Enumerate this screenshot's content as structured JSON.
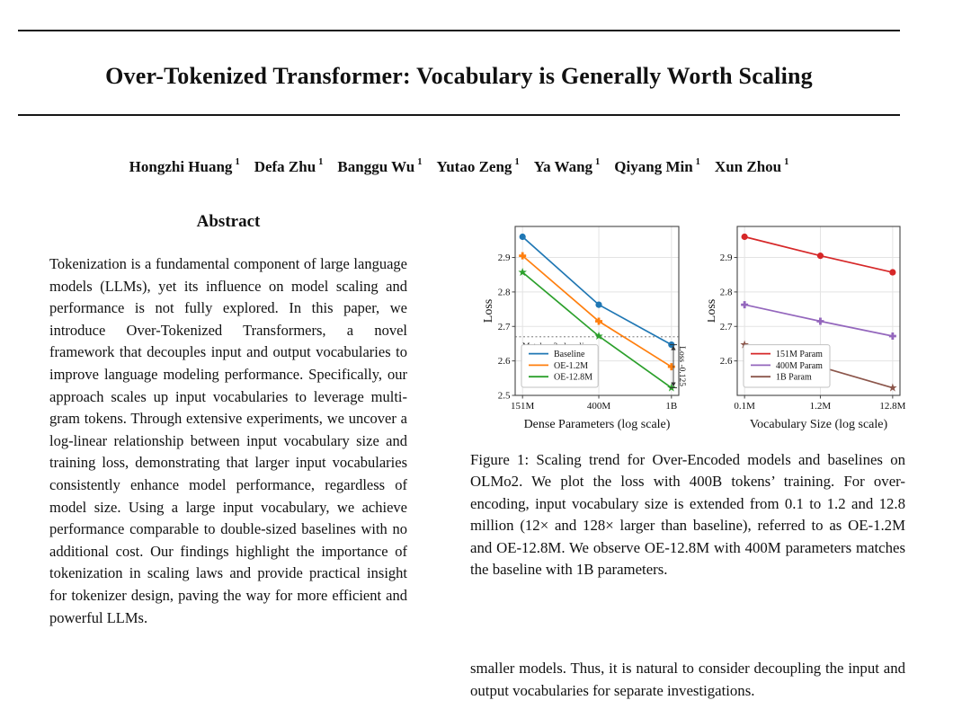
{
  "header": {
    "title": "Over-Tokenized Transformer: Vocabulary is Generally Worth Scaling",
    "authors": [
      {
        "name": "Hongzhi Huang",
        "affiliation": "1"
      },
      {
        "name": "Defa Zhu",
        "affiliation": "1"
      },
      {
        "name": "Banggu Wu",
        "affiliation": "1"
      },
      {
        "name": "Yutao Zeng",
        "affiliation": "1"
      },
      {
        "name": "Ya Wang",
        "affiliation": "1"
      },
      {
        "name": "Qiyang Min",
        "affiliation": "1"
      },
      {
        "name": "Xun Zhou",
        "affiliation": "1"
      }
    ]
  },
  "abstract": {
    "heading": "Abstract",
    "text": "Tokenization is a fundamental component of large language models (LLMs), yet its influence on model scaling and performance is not fully explored. In this paper, we introduce Over-Tokenized Transformers, a novel framework that decouples input and output vocabularies to improve language modeling performance. Specifically, our approach scales up input vocabularies to leverage multi-gram tokens. Through extensive experiments, we uncover a log-linear relationship between input vocabulary size and training loss, demonstrating that larger input vocabularies consistently enhance model performance, regardless of model size. Using a large input vocabulary, we achieve performance comparable to double-sized baselines with no additional cost. Our findings highlight the importance of tokenization in scaling laws and provide practical insight for tokenizer design, paving the way for more efficient and powerful LLMs."
  },
  "figure": {
    "caption": "Figure 1: Scaling trend for Over-Encoded models and baselines on OLMo2. We plot the loss with 400B tokens’ training. For over-encoding, input vocabulary size is extended from 0.1 to 1.2 and 12.8 million (12× and 128× larger than baseline), referred to as OE-1.2M and OE-12.8M. We observe OE-12.8M with 400M parameters matches the baseline with 1B parameters."
  },
  "body": {
    "text": "smaller models. Thus, it is natural to consider decoupling the input and output vocabularies for separate investigations."
  },
  "chart_data": [
    {
      "type": "line",
      "title": "",
      "xlabel": "Dense Parameters (log scale)",
      "ylabel": "Loss",
      "x_ticks": [
        "151M",
        "400M",
        "1B"
      ],
      "x_log10": [
        8.18,
        8.6,
        9.0
      ],
      "ylim": [
        2.5,
        2.99
      ],
      "y_ticks": [
        2.5,
        2.6,
        2.7,
        2.8,
        2.9
      ],
      "grid": true,
      "legend_position": "lower left",
      "series": [
        {
          "name": "Baseline",
          "color": "#1f77b4",
          "marker": "circle",
          "values": [
            2.96,
            2.763,
            2.647
          ]
        },
        {
          "name": "OE-1.2M",
          "color": "#ff7f0e",
          "marker": "plus",
          "values": [
            2.905,
            2.715,
            2.583
          ]
        },
        {
          "name": "OE-12.8M",
          "color": "#2ca02c",
          "marker": "star",
          "values": [
            2.857,
            2.672,
            2.522
          ]
        }
      ],
      "annotations": {
        "hline": {
          "y": 2.67,
          "label": "Matches 2x baseline"
        },
        "arrow": {
          "from": 2.647,
          "to": 2.522,
          "label": "Loss -0.125"
        }
      }
    },
    {
      "type": "line",
      "title": "",
      "xlabel": "Vocabulary Size (log scale)",
      "ylabel": "Loss",
      "x_ticks": [
        "0.1M",
        "1.2M",
        "12.8M"
      ],
      "x_log10": [
        5.0,
        6.08,
        7.11
      ],
      "ylim": [
        2.5,
        2.99
      ],
      "y_ticks": [
        2.6,
        2.7,
        2.8,
        2.9
      ],
      "grid": true,
      "legend_position": "lower left",
      "series": [
        {
          "name": "151M Param",
          "color": "#d62728",
          "marker": "circle",
          "values": [
            2.96,
            2.905,
            2.857
          ]
        },
        {
          "name": "400M Param",
          "color": "#9467bd",
          "marker": "plus",
          "values": [
            2.763,
            2.715,
            2.672
          ]
        },
        {
          "name": "1B Param",
          "color": "#8c564b",
          "marker": "star",
          "values": [
            2.647,
            2.583,
            2.522
          ]
        }
      ]
    }
  ]
}
